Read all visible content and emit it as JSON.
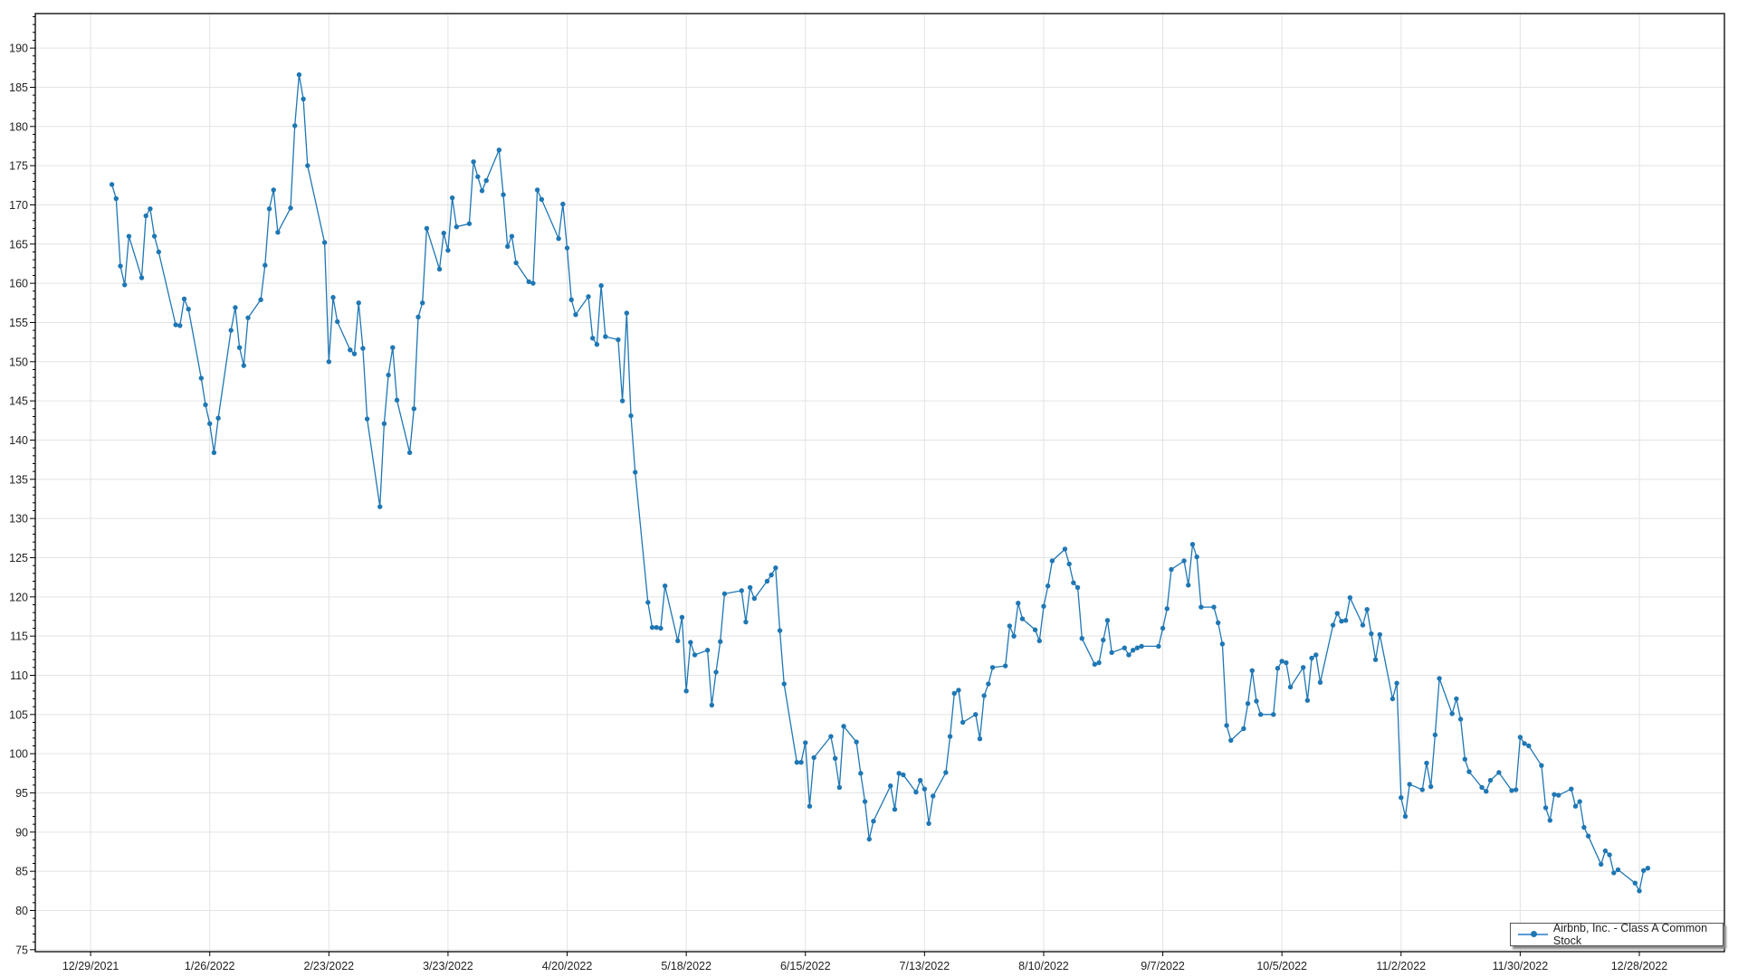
{
  "chart_data": {
    "type": "line",
    "title": "",
    "xlabel": "",
    "ylabel": "",
    "ylim": [
      74.75,
      194.4
    ],
    "xlim": [
      "2021-12-16",
      "2023-01-17"
    ],
    "yticks": [
      75,
      80,
      85,
      90,
      95,
      100,
      105,
      110,
      115,
      120,
      125,
      130,
      135,
      140,
      145,
      150,
      155,
      160,
      165,
      170,
      175,
      180,
      185,
      190
    ],
    "xticks": [
      "12/29/2021",
      "1/26/2022",
      "2/23/2022",
      "3/23/2022",
      "4/20/2022",
      "5/18/2022",
      "6/15/2022",
      "7/13/2022",
      "8/10/2022",
      "9/7/2022",
      "10/5/2022",
      "11/2/2022",
      "11/30/2022",
      "12/28/2022"
    ],
    "grid": true,
    "legend_position": "bottom-right",
    "series": [
      {
        "name": "Airbnb, Inc. - Class A Common Stock",
        "color": "#1f77b4",
        "x": [
          "2022-01-03",
          "2022-01-04",
          "2022-01-05",
          "2022-01-06",
          "2022-01-07",
          "2022-01-10",
          "2022-01-11",
          "2022-01-12",
          "2022-01-13",
          "2022-01-14",
          "2022-01-18",
          "2022-01-19",
          "2022-01-20",
          "2022-01-21",
          "2022-01-24",
          "2022-01-25",
          "2022-01-26",
          "2022-01-27",
          "2022-01-28",
          "2022-01-31",
          "2022-02-01",
          "2022-02-02",
          "2022-02-03",
          "2022-02-04",
          "2022-02-07",
          "2022-02-08",
          "2022-02-09",
          "2022-02-10",
          "2022-02-11",
          "2022-02-14",
          "2022-02-15",
          "2022-02-16",
          "2022-02-17",
          "2022-02-18",
          "2022-02-22",
          "2022-02-23",
          "2022-02-24",
          "2022-02-25",
          "2022-02-28",
          "2022-03-01",
          "2022-03-02",
          "2022-03-03",
          "2022-03-04",
          "2022-03-07",
          "2022-03-08",
          "2022-03-09",
          "2022-03-10",
          "2022-03-11",
          "2022-03-14",
          "2022-03-15",
          "2022-03-16",
          "2022-03-17",
          "2022-03-18",
          "2022-03-21",
          "2022-03-22",
          "2022-03-23",
          "2022-03-24",
          "2022-03-25",
          "2022-03-28",
          "2022-03-29",
          "2022-03-30",
          "2022-03-31",
          "2022-04-01",
          "2022-04-04",
          "2022-04-05",
          "2022-04-06",
          "2022-04-07",
          "2022-04-08",
          "2022-04-11",
          "2022-04-12",
          "2022-04-13",
          "2022-04-14",
          "2022-04-18",
          "2022-04-19",
          "2022-04-20",
          "2022-04-21",
          "2022-04-22",
          "2022-04-25",
          "2022-04-26",
          "2022-04-27",
          "2022-04-28",
          "2022-04-29",
          "2022-05-02",
          "2022-05-03",
          "2022-05-04",
          "2022-05-05",
          "2022-05-06",
          "2022-05-09",
          "2022-05-10",
          "2022-05-11",
          "2022-05-12",
          "2022-05-13",
          "2022-05-16",
          "2022-05-17",
          "2022-05-18",
          "2022-05-19",
          "2022-05-20",
          "2022-05-23",
          "2022-05-24",
          "2022-05-25",
          "2022-05-26",
          "2022-05-27",
          "2022-05-31",
          "2022-06-01",
          "2022-06-02",
          "2022-06-03",
          "2022-06-06",
          "2022-06-07",
          "2022-06-08",
          "2022-06-09",
          "2022-06-10",
          "2022-06-13",
          "2022-06-14",
          "2022-06-15",
          "2022-06-16",
          "2022-06-17",
          "2022-06-21",
          "2022-06-22",
          "2022-06-23",
          "2022-06-24",
          "2022-06-27",
          "2022-06-28",
          "2022-06-29",
          "2022-06-30",
          "2022-07-01",
          "2022-07-05",
          "2022-07-06",
          "2022-07-07",
          "2022-07-08",
          "2022-07-11",
          "2022-07-12",
          "2022-07-13",
          "2022-07-14",
          "2022-07-15",
          "2022-07-18",
          "2022-07-19",
          "2022-07-20",
          "2022-07-21",
          "2022-07-22",
          "2022-07-25",
          "2022-07-26",
          "2022-07-27",
          "2022-07-28",
          "2022-07-29",
          "2022-08-01",
          "2022-08-02",
          "2022-08-03",
          "2022-08-04",
          "2022-08-05",
          "2022-08-08",
          "2022-08-09",
          "2022-08-10",
          "2022-08-11",
          "2022-08-12",
          "2022-08-15",
          "2022-08-16",
          "2022-08-17",
          "2022-08-18",
          "2022-08-19",
          "2022-08-22",
          "2022-08-23",
          "2022-08-24",
          "2022-08-25",
          "2022-08-26",
          "2022-08-29",
          "2022-08-30",
          "2022-08-31",
          "2022-09-01",
          "2022-09-02",
          "2022-09-06",
          "2022-09-07",
          "2022-09-08",
          "2022-09-09",
          "2022-09-12",
          "2022-09-13",
          "2022-09-14",
          "2022-09-15",
          "2022-09-16",
          "2022-09-19",
          "2022-09-20",
          "2022-09-21",
          "2022-09-22",
          "2022-09-23",
          "2022-09-26",
          "2022-09-27",
          "2022-09-28",
          "2022-09-29",
          "2022-09-30",
          "2022-10-03",
          "2022-10-04",
          "2022-10-05",
          "2022-10-06",
          "2022-10-07",
          "2022-10-10",
          "2022-10-11",
          "2022-10-12",
          "2022-10-13",
          "2022-10-14",
          "2022-10-17",
          "2022-10-18",
          "2022-10-19",
          "2022-10-20",
          "2022-10-21",
          "2022-10-24",
          "2022-10-25",
          "2022-10-26",
          "2022-10-27",
          "2022-10-28",
          "2022-10-31",
          "2022-11-01",
          "2022-11-02",
          "2022-11-03",
          "2022-11-04",
          "2022-11-07",
          "2022-11-08",
          "2022-11-09",
          "2022-11-10",
          "2022-11-11",
          "2022-11-14",
          "2022-11-15",
          "2022-11-16",
          "2022-11-17",
          "2022-11-18",
          "2022-11-21",
          "2022-11-22",
          "2022-11-23",
          "2022-11-25",
          "2022-11-28",
          "2022-11-29",
          "2022-11-30",
          "2022-12-01",
          "2022-12-02",
          "2022-12-05",
          "2022-12-06",
          "2022-12-07",
          "2022-12-08",
          "2022-12-09",
          "2022-12-12",
          "2022-12-13",
          "2022-12-14",
          "2022-12-15",
          "2022-12-16",
          "2022-12-19",
          "2022-12-20",
          "2022-12-21",
          "2022-12-22",
          "2022-12-23",
          "2022-12-27",
          "2022-12-28",
          "2022-12-29",
          "2022-12-30"
        ],
        "y": [
          172.6,
          170.8,
          162.2,
          159.8,
          166.0,
          160.7,
          168.6,
          169.5,
          166.0,
          164.0,
          154.7,
          154.6,
          158.0,
          156.7,
          147.9,
          144.5,
          142.1,
          138.4,
          142.8,
          154.0,
          156.9,
          151.8,
          149.5,
          155.6,
          157.9,
          162.3,
          169.5,
          171.9,
          166.5,
          169.6,
          180.1,
          186.6,
          183.5,
          175.0,
          165.2,
          150.0,
          158.2,
          155.1,
          151.5,
          151.0,
          157.5,
          151.7,
          142.7,
          131.5,
          142.1,
          148.3,
          151.8,
          145.1,
          138.4,
          144.0,
          155.7,
          157.5,
          167.0,
          161.8,
          166.4,
          164.2,
          170.9,
          167.2,
          167.6,
          175.5,
          173.6,
          171.8,
          173.1,
          177.0,
          171.3,
          164.7,
          166.0,
          162.6,
          160.2,
          160.0,
          171.9,
          170.7,
          165.7,
          170.1,
          164.5,
          157.9,
          156.0,
          158.3,
          153.0,
          152.2,
          159.7,
          153.2,
          152.8,
          145.0,
          156.2,
          143.1,
          135.9,
          119.3,
          116.1,
          116.1,
          116.0,
          121.4,
          114.4,
          117.4,
          108.0,
          114.2,
          112.6,
          113.2,
          106.2,
          110.4,
          114.3,
          120.4,
          120.8,
          116.8,
          121.2,
          119.8,
          122.0,
          122.8,
          123.7,
          115.7,
          108.9,
          98.9,
          98.9,
          101.4,
          93.3,
          99.5,
          102.2,
          99.4,
          95.7,
          103.5,
          101.5,
          97.5,
          93.9,
          89.1,
          91.4,
          95.9,
          92.9,
          97.5,
          97.3,
          95.1,
          96.6,
          95.5,
          91.1,
          94.6,
          97.6,
          102.2,
          107.7,
          108.1,
          104.0,
          105.0,
          101.9,
          107.4,
          108.9,
          111.0,
          111.2,
          116.3,
          115.0,
          119.2,
          117.2,
          115.8,
          114.4,
          118.8,
          121.4,
          124.6,
          126.1,
          124.2,
          121.8,
          121.2,
          114.7,
          111.4,
          111.6,
          114.5,
          117.0,
          112.9,
          113.5,
          112.6,
          113.2,
          113.5,
          113.7,
          113.7,
          116.0,
          118.5,
          123.5,
          124.6,
          121.5,
          126.7,
          125.1,
          118.7,
          118.7,
          116.7,
          114.0,
          103.6,
          101.7,
          103.2,
          106.4,
          110.6,
          106.7,
          105.0,
          105.0,
          110.9,
          111.8,
          111.6,
          108.5,
          111.0,
          106.8,
          112.2,
          112.6,
          109.1,
          116.4,
          117.9,
          116.9,
          117.0,
          119.9,
          116.4,
          118.4,
          115.3,
          112.0,
          115.2,
          107.0,
          109.0,
          94.4,
          92.0,
          96.1,
          95.4,
          98.8,
          95.8,
          102.4,
          109.6,
          105.1,
          107.0,
          104.4,
          99.3,
          97.7,
          95.7,
          95.2,
          96.6,
          97.6,
          95.3,
          95.4,
          102.1,
          101.3,
          101.0,
          98.5,
          93.1,
          91.5,
          94.8,
          94.7,
          95.5,
          93.3,
          93.9,
          90.6,
          89.5,
          85.9,
          87.6,
          87.1,
          84.8,
          85.2,
          83.5,
          82.5,
          85.1,
          85.4
        ]
      }
    ]
  }
}
